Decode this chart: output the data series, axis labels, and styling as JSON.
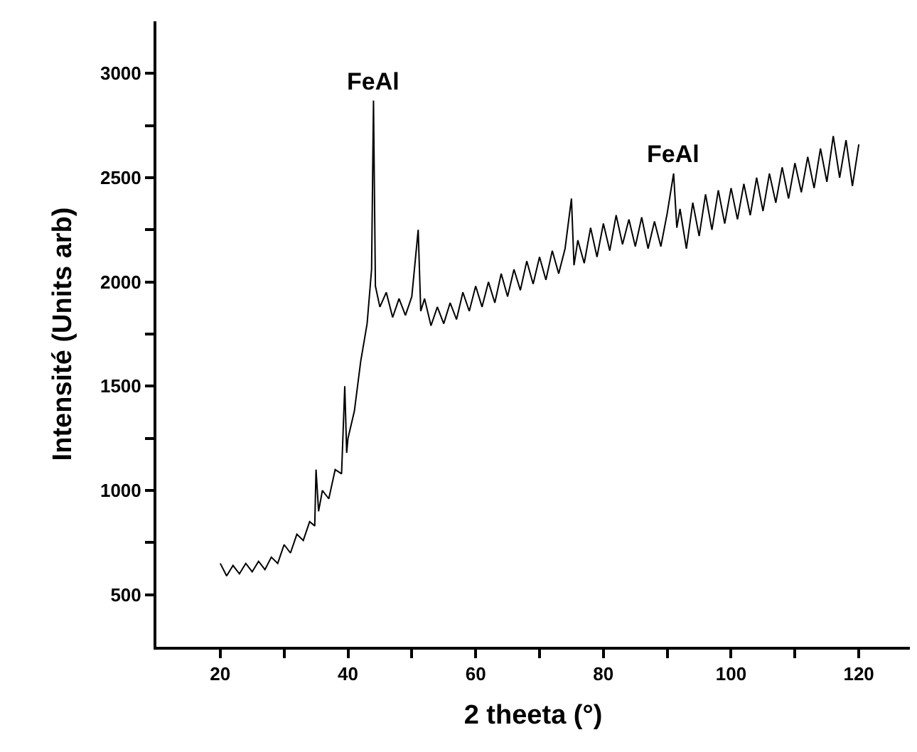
{
  "chart_data": {
    "type": "line",
    "xlabel": "2 theeta (°)",
    "ylabel": "Intensité (Units arb)",
    "xlim": [
      10,
      128
    ],
    "ylim": [
      250,
      3250
    ],
    "xticks": [
      20,
      {
        "value": 30,
        "label": null
      },
      40,
      {
        "value": 50,
        "label": null
      },
      60,
      {
        "value": 70,
        "label": null
      },
      80,
      {
        "value": 90,
        "label": null
      },
      100,
      {
        "value": 110,
        "label": null
      },
      120
    ],
    "yticks": [
      500,
      {
        "value": 750,
        "label": null
      },
      1000,
      {
        "value": 1250,
        "label": null
      },
      1500,
      {
        "value": 1750,
        "label": null
      },
      2000,
      {
        "value": 2250,
        "label": null
      },
      2500,
      {
        "value": 2750,
        "label": null
      },
      3000
    ],
    "marker": "none",
    "line_style": "solid",
    "annotations": [
      {
        "text": "FeAl",
        "x": 44,
        "y": 2870
      },
      {
        "text": "FeAl",
        "x": 91,
        "y": 2520
      }
    ],
    "series": [
      {
        "color": "#000000",
        "x": [
          20,
          21,
          22,
          23,
          24,
          25,
          26,
          27,
          28,
          29,
          30,
          31,
          32,
          33,
          34,
          34.8,
          35,
          35.4,
          36,
          37,
          38,
          39,
          39.5,
          39.8,
          40,
          41,
          42,
          43,
          43.7,
          44,
          44.3,
          45,
          46,
          47,
          48,
          49,
          50,
          51,
          51.4,
          52,
          53,
          54,
          55,
          56,
          57,
          58,
          59,
          60,
          61,
          62,
          63,
          64,
          65,
          66,
          67,
          68,
          69,
          70,
          71,
          72,
          73,
          74,
          75,
          75.4,
          76,
          77,
          78,
          79,
          80,
          81,
          82,
          83,
          84,
          85,
          86,
          87,
          88,
          89,
          90,
          91,
          91.5,
          92,
          93,
          94,
          95,
          96,
          97,
          98,
          99,
          100,
          101,
          102,
          103,
          104,
          105,
          106,
          107,
          108,
          109,
          110,
          111,
          112,
          113,
          114,
          115,
          116,
          117,
          118,
          119,
          120
        ],
        "values": [
          650,
          590,
          640,
          600,
          650,
          610,
          660,
          620,
          680,
          650,
          740,
          700,
          790,
          760,
          850,
          830,
          1100,
          900,
          1000,
          960,
          1100,
          1080,
          1500,
          1180,
          1250,
          1380,
          1620,
          1800,
          2060,
          2870,
          1980,
          1880,
          1950,
          1830,
          1920,
          1840,
          1930,
          2250,
          1860,
          1920,
          1790,
          1880,
          1800,
          1900,
          1820,
          1950,
          1860,
          1980,
          1880,
          2000,
          1900,
          2040,
          1930,
          2060,
          1960,
          2100,
          1990,
          2120,
          2010,
          2150,
          2040,
          2160,
          2400,
          2080,
          2200,
          2090,
          2260,
          2120,
          2280,
          2150,
          2320,
          2180,
          2300,
          2170,
          2310,
          2160,
          2290,
          2170,
          2330,
          2520,
          2260,
          2350,
          2160,
          2380,
          2220,
          2420,
          2250,
          2440,
          2280,
          2450,
          2300,
          2470,
          2320,
          2500,
          2340,
          2520,
          2380,
          2550,
          2400,
          2570,
          2430,
          2600,
          2450,
          2640,
          2480,
          2700,
          2500,
          2680,
          2460,
          2660
        ]
      }
    ]
  }
}
